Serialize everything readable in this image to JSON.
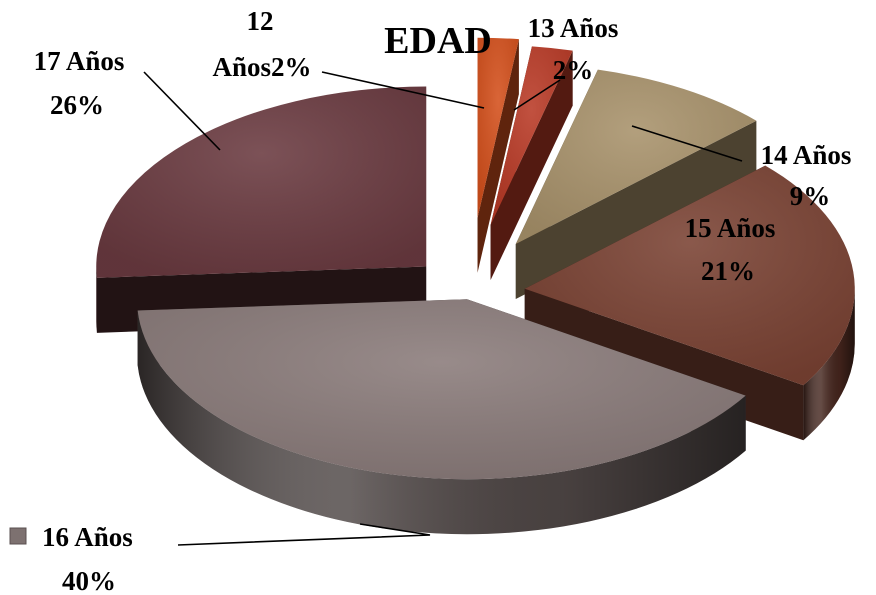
{
  "chart_data": {
    "type": "pie",
    "title": "EDAD",
    "categories": [
      "12 Años",
      "13 Años",
      "14 Años",
      "15 Años",
      "16 Años",
      "17 Años"
    ],
    "values": [
      2,
      2,
      9,
      21,
      40,
      26
    ],
    "unit": "%",
    "exploded": true,
    "three_d": true,
    "legend_marker_category": "16 Años",
    "colors": {
      "12 Años": "#d4501c",
      "13 Años": "#b93a26",
      "14 Años": "#a8926b",
      "15 Años": "#7a4233",
      "16 Años": "#8a7b7a",
      "17 Años": "#6a3a40"
    }
  },
  "labels": {
    "title": "EDAD",
    "items": [
      {
        "line1": "12",
        "line2": "Años2%"
      },
      {
        "line1": "13 Años",
        "line2": "2%"
      },
      {
        "line1": "14 Años",
        "line2": "9%"
      },
      {
        "line1": "15 Años",
        "line2": "21%"
      },
      {
        "line1": "16 Años",
        "line2": "40%"
      },
      {
        "line1": "17 Años",
        "line2": "26%"
      }
    ]
  }
}
